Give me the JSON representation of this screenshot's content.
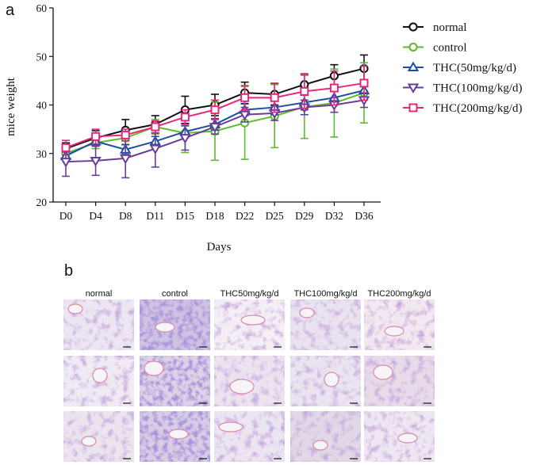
{
  "panels": {
    "a": "a",
    "b": "b"
  },
  "chart_data": {
    "type": "line",
    "title": "",
    "xlabel": "Days",
    "ylabel": "mice weight",
    "categories": [
      "D0",
      "D4",
      "D8",
      "D11",
      "D15",
      "D18",
      "D22",
      "D25",
      "D29",
      "D32",
      "D36"
    ],
    "ylim": [
      20,
      60
    ],
    "yticks": [
      "20",
      "30",
      "40",
      "50",
      "60"
    ],
    "grid": false,
    "legend_position": "right",
    "series": [
      {
        "name": "normal",
        "color": "#111111",
        "marker": "circle",
        "values": [
          31.0,
          33.2,
          34.8,
          36.0,
          39.0,
          40.0,
          42.5,
          42.2,
          44.2,
          46.0,
          47.5
        ],
        "errors": [
          1.2,
          1.5,
          2.2,
          1.8,
          2.8,
          2.2,
          2.2,
          2.2,
          2.2,
          2.3,
          2.8
        ]
      },
      {
        "name": "control",
        "color": "#5DBB2F",
        "marker": "circle",
        "values": [
          30.0,
          32.2,
          33.2,
          35.5,
          34.2,
          34.6,
          36.3,
          37.7,
          39.6,
          40.4,
          42.5
        ],
        "errors": [
          1.0,
          1.2,
          1.3,
          1.5,
          4.0,
          6.0,
          7.5,
          6.5,
          6.5,
          7.0,
          6.2
        ]
      },
      {
        "name": "THC(50mg/kg/d)",
        "color": "#1F4E9E",
        "marker": "triangle",
        "values": [
          29.5,
          32.5,
          30.8,
          32.5,
          34.5,
          36.0,
          39.0,
          39.5,
          40.5,
          41.5,
          43.0
        ],
        "errors": [
          0.8,
          1.0,
          1.0,
          1.0,
          1.2,
          1.2,
          1.2,
          1.5,
          1.5,
          1.5,
          1.5
        ]
      },
      {
        "name": "THC(100mg/kg/d)",
        "color": "#6A3D9A",
        "marker": "triangle-down",
        "values": [
          28.3,
          28.5,
          29.0,
          31.0,
          33.2,
          35.5,
          38.0,
          38.3,
          39.5,
          40.0,
          41.0
        ],
        "errors": [
          3.0,
          3.0,
          4.0,
          3.8,
          2.5,
          1.5,
          1.5,
          1.5,
          1.5,
          1.5,
          1.5
        ]
      },
      {
        "name": "THC(200mg/kg/d)",
        "color": "#E4287C",
        "marker": "square",
        "values": [
          31.2,
          33.5,
          33.8,
          35.5,
          37.5,
          39.0,
          41.5,
          41.5,
          42.8,
          43.5,
          44.5
        ],
        "errors": [
          1.5,
          1.5,
          1.2,
          1.2,
          1.5,
          2.0,
          2.5,
          3.0,
          3.5,
          3.5,
          3.5
        ]
      }
    ]
  },
  "histology": {
    "columns": [
      "normal",
      "control",
      "THC50mg/kg/d",
      "THC100mg/kg/d",
      "THC200mg/kg/d"
    ],
    "rows": 3
  }
}
